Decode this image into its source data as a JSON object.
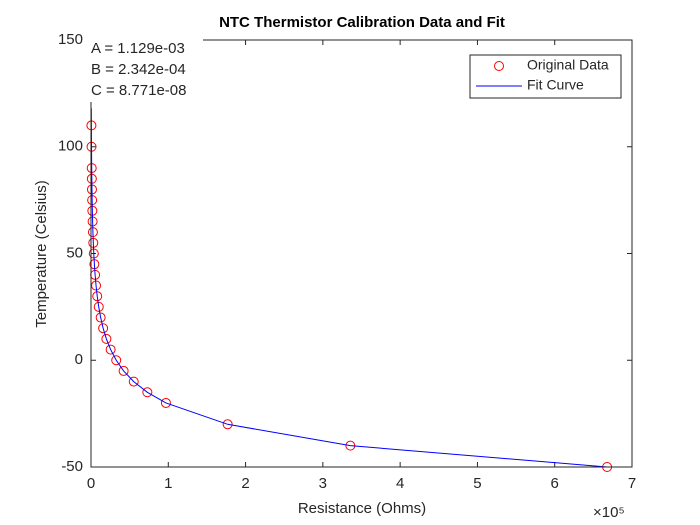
{
  "chart_data": {
    "type": "scatter",
    "title": "NTC Thermistor Calibration Data and Fit",
    "xlabel": "Resistance (Ohms)",
    "ylabel": "Temperature (Celsius)",
    "x_exponent": "×10⁵",
    "annotations": [
      "A = 1.129e-03",
      "B = 2.342e-04",
      "C = 8.771e-08"
    ],
    "xlim": [
      0,
      700000
    ],
    "xticks": [
      0,
      {
        "value": 100000,
        "label": "1"
      },
      {
        "value": 200000,
        "label": "2"
      },
      {
        "value": 300000,
        "label": "3"
      },
      {
        "value": 400000,
        "label": "4"
      },
      {
        "value": 500000,
        "label": "5"
      },
      {
        "value": 600000,
        "label": "6"
      },
      {
        "value": 700000,
        "label": "7"
      }
    ],
    "ylim": [
      -50,
      150
    ],
    "yticks": [
      -50,
      0,
      50,
      100,
      150
    ],
    "legend": "upper right",
    "series": [
      {
        "name": "Original Data",
        "color": "#ff0000",
        "style": "markers",
        "x": [
          667800,
          335600,
          176800,
          96970,
          72900,
          55300,
          42200,
          32650,
          25400,
          19900,
          15710,
          12490,
          10000,
          8057,
          6531,
          5327,
          4370,
          3603,
          2986,
          2488,
          2083,
          1752,
          1480,
          1255,
          1070,
          917,
          679,
          511
        ],
        "values": [
          -50,
          -40,
          -30,
          -20,
          -15,
          -10,
          -5,
          0,
          5,
          10,
          15,
          20,
          25,
          30,
          35,
          40,
          45,
          50,
          55,
          60,
          65,
          70,
          75,
          80,
          85,
          90,
          100,
          110
        ]
      },
      {
        "name": "Fit Curve",
        "color": "#0000ff",
        "style": "line",
        "x": [
          420,
          511,
          679,
          917,
          1070,
          1255,
          1480,
          1752,
          2083,
          2488,
          2986,
          3603,
          4370,
          5327,
          6531,
          8057,
          10000,
          12490,
          15710,
          19900,
          25400,
          32650,
          42200,
          55300,
          72900,
          96970,
          176800,
          335600,
          667800
        ],
        "values": [
          118,
          110,
          100,
          90,
          85,
          80,
          75,
          70,
          65,
          60,
          55,
          50,
          45,
          40,
          35,
          30,
          25,
          20,
          15,
          10,
          5,
          0,
          -5,
          -10,
          -15,
          -20,
          -30,
          -40,
          -50
        ]
      }
    ]
  }
}
